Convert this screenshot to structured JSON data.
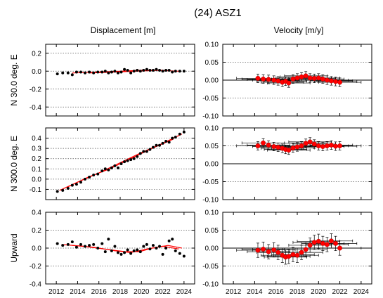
{
  "chart_data": {
    "title": "(24) ASZ1",
    "column_titles": [
      "Displacement [m]",
      "Velocity [m/y]"
    ],
    "x_tick_labels": [
      "2012",
      "2014",
      "2016",
      "2018",
      "2020",
      "2022",
      "2024"
    ],
    "xlim": [
      2011,
      2025
    ],
    "type": "scatter",
    "panels": [
      {
        "row_label": "N  30.0 deg. E",
        "column": "Displacement [m]",
        "type": "scatter",
        "ylim": [
          -0.5,
          0.3
        ],
        "y_tick_labels": [
          "0.2",
          "0.0",
          "-0.2",
          "-0.4"
        ],
        "points": [
          [
            2012.1,
            -0.03
          ],
          [
            2012.6,
            -0.02
          ],
          [
            2013.1,
            -0.02
          ],
          [
            2013.5,
            -0.04
          ],
          [
            2013.9,
            -0.01
          ],
          [
            2014.3,
            -0.01
          ],
          [
            2014.7,
            -0.02
          ],
          [
            2015.1,
            -0.01
          ],
          [
            2015.5,
            -0.02
          ],
          [
            2015.9,
            -0.01
          ],
          [
            2016.3,
            -0.01
          ],
          [
            2016.6,
            0.0
          ],
          [
            2016.9,
            -0.02
          ],
          [
            2017.2,
            -0.01
          ],
          [
            2017.5,
            0.0
          ],
          [
            2017.8,
            -0.02
          ],
          [
            2018.1,
            -0.01
          ],
          [
            2018.4,
            0.02
          ],
          [
            2018.7,
            0.01
          ],
          [
            2019.0,
            -0.02
          ],
          [
            2019.3,
            0.0
          ],
          [
            2019.6,
            0.01
          ],
          [
            2019.9,
            0.0
          ],
          [
            2020.2,
            0.01
          ],
          [
            2020.5,
            0.02
          ],
          [
            2020.8,
            0.01
          ],
          [
            2021.1,
            0.01
          ],
          [
            2021.4,
            0.02
          ],
          [
            2021.7,
            0.01
          ],
          [
            2022.0,
            0.0
          ],
          [
            2022.3,
            0.01
          ],
          [
            2022.6,
            0.01
          ],
          [
            2022.9,
            -0.01
          ],
          [
            2023.2,
            0.0
          ],
          [
            2023.6,
            0.0
          ],
          [
            2024.0,
            0.0
          ]
        ],
        "fit_lines": [
          [
            [
              2013.5,
              -0.02
            ],
            [
              2016,
              -0.01
            ],
            [
              2018,
              0.0
            ],
            [
              2020,
              0.01
            ],
            [
              2022,
              0.01
            ]
          ],
          [
            [
              2015,
              -0.02
            ],
            [
              2017.5,
              -0.01
            ],
            [
              2019.5,
              0.0
            ],
            [
              2021.5,
              0.01
            ],
            [
              2023.5,
              0.0
            ]
          ]
        ]
      },
      {
        "row_label": "N  30.0 deg. E",
        "column": "Velocity [m/y]",
        "type": "scatter",
        "ylim": [
          -0.1,
          0.1
        ],
        "y_tick_labels": [
          "0.10",
          "0.05",
          "0.00",
          "-0.05",
          "-0.10"
        ],
        "points": [
          [
            2014.3,
            0.005
          ],
          [
            2014.8,
            0.003
          ],
          [
            2015.3,
            0.002
          ],
          [
            2015.8,
            0.0
          ],
          [
            2016.2,
            -0.002
          ],
          [
            2016.6,
            -0.006
          ],
          [
            2016.9,
            -0.003
          ],
          [
            2017.2,
            -0.008
          ],
          [
            2017.6,
            0.003
          ],
          [
            2018.0,
            0.006
          ],
          [
            2018.4,
            0.009
          ],
          [
            2018.8,
            0.012
          ],
          [
            2019.2,
            0.006
          ],
          [
            2019.6,
            0.005
          ],
          [
            2020.0,
            0.006
          ],
          [
            2020.4,
            0.003
          ],
          [
            2020.8,
            0.0
          ],
          [
            2021.2,
            -0.002
          ],
          [
            2021.6,
            -0.004
          ],
          [
            2022.0,
            -0.006
          ]
        ],
        "error_y": 0.012,
        "error_x": 2.0
      },
      {
        "row_label": "N 300.0 deg. E",
        "column": "Displacement [m]",
        "type": "scatter",
        "ylim": [
          -0.2,
          0.5
        ],
        "y_tick_labels": [
          "0.4",
          "0.3",
          "0.2",
          "0.1",
          "0.0",
          "-0.1"
        ],
        "points": [
          [
            2012.1,
            -0.12
          ],
          [
            2012.6,
            -0.11
          ],
          [
            2013.1,
            -0.09
          ],
          [
            2013.5,
            -0.06
          ],
          [
            2013.9,
            -0.05
          ],
          [
            2014.3,
            -0.03
          ],
          [
            2014.7,
            0.0
          ],
          [
            2015.1,
            0.02
          ],
          [
            2015.5,
            0.04
          ],
          [
            2015.9,
            0.05
          ],
          [
            2016.3,
            0.08
          ],
          [
            2016.6,
            0.1
          ],
          [
            2016.9,
            0.09
          ],
          [
            2017.2,
            0.11
          ],
          [
            2017.5,
            0.13
          ],
          [
            2017.8,
            0.11
          ],
          [
            2018.1,
            0.15
          ],
          [
            2018.4,
            0.17
          ],
          [
            2018.7,
            0.18
          ],
          [
            2019.0,
            0.19
          ],
          [
            2019.3,
            0.2
          ],
          [
            2019.6,
            0.22
          ],
          [
            2019.9,
            0.25
          ],
          [
            2020.2,
            0.27
          ],
          [
            2020.5,
            0.27
          ],
          [
            2020.8,
            0.29
          ],
          [
            2021.1,
            0.31
          ],
          [
            2021.4,
            0.33
          ],
          [
            2021.7,
            0.33
          ],
          [
            2022.0,
            0.35
          ],
          [
            2022.3,
            0.37
          ],
          [
            2022.6,
            0.36
          ],
          [
            2022.9,
            0.4
          ],
          [
            2023.2,
            0.41
          ],
          [
            2023.6,
            0.44
          ],
          [
            2024.0,
            0.46
          ]
        ],
        "fit_lines": [
          [
            [
              2012.3,
              -0.11
            ],
            [
              2014,
              -0.03
            ],
            [
              2016,
              0.06
            ],
            [
              2018,
              0.16
            ],
            [
              2020,
              0.26
            ],
            [
              2022,
              0.35
            ],
            [
              2023.8,
              0.44
            ]
          ],
          [
            [
              2013,
              -0.08
            ],
            [
              2015,
              0.02
            ],
            [
              2017,
              0.1
            ],
            [
              2019,
              0.2
            ],
            [
              2021,
              0.3
            ],
            [
              2023,
              0.39
            ]
          ]
        ]
      },
      {
        "row_label": "N 300.0 deg. E",
        "column": "Velocity [m/y]",
        "type": "scatter",
        "ylim": [
          -0.1,
          0.1
        ],
        "y_tick_labels": [
          "0.10",
          "0.05",
          "0.00",
          "-0.05",
          "-0.10"
        ],
        "points": [
          [
            2014.3,
            0.05
          ],
          [
            2014.8,
            0.058
          ],
          [
            2015.3,
            0.052
          ],
          [
            2015.8,
            0.048
          ],
          [
            2016.2,
            0.046
          ],
          [
            2016.6,
            0.043
          ],
          [
            2016.9,
            0.04
          ],
          [
            2017.2,
            0.038
          ],
          [
            2017.6,
            0.044
          ],
          [
            2018.0,
            0.047
          ],
          [
            2018.4,
            0.05
          ],
          [
            2018.8,
            0.057
          ],
          [
            2019.2,
            0.061
          ],
          [
            2019.6,
            0.055
          ],
          [
            2020.0,
            0.05
          ],
          [
            2020.4,
            0.048
          ],
          [
            2020.8,
            0.05
          ],
          [
            2021.2,
            0.052
          ],
          [
            2021.6,
            0.049
          ],
          [
            2022.0,
            0.05
          ]
        ],
        "error_y": 0.012,
        "error_x": 2.0
      },
      {
        "row_label": "Upward",
        "column": "Displacement [m]",
        "type": "scatter",
        "ylim": [
          -0.4,
          0.4
        ],
        "y_tick_labels": [
          "0.4",
          "0.2",
          "0.0",
          "-0.2",
          "-0.4"
        ],
        "points": [
          [
            2012.1,
            0.05
          ],
          [
            2012.6,
            0.03
          ],
          [
            2013.1,
            0.04
          ],
          [
            2013.5,
            0.07
          ],
          [
            2013.9,
            0.01
          ],
          [
            2014.3,
            0.04
          ],
          [
            2014.7,
            0.02
          ],
          [
            2015.1,
            0.03
          ],
          [
            2015.5,
            0.04
          ],
          [
            2015.9,
            0.0
          ],
          [
            2016.3,
            0.05
          ],
          [
            2016.6,
            -0.04
          ],
          [
            2016.9,
            0.1
          ],
          [
            2017.2,
            -0.03
          ],
          [
            2017.5,
            0.02
          ],
          [
            2017.8,
            -0.05
          ],
          [
            2018.1,
            -0.07
          ],
          [
            2018.4,
            -0.05
          ],
          [
            2018.7,
            -0.02
          ],
          [
            2019.0,
            -0.06
          ],
          [
            2019.3,
            -0.03
          ],
          [
            2019.6,
            -0.02
          ],
          [
            2019.9,
            -0.04
          ],
          [
            2020.2,
            0.02
          ],
          [
            2020.5,
            0.04
          ],
          [
            2020.8,
            -0.01
          ],
          [
            2021.1,
            0.03
          ],
          [
            2021.4,
            0.0
          ],
          [
            2021.7,
            0.02
          ],
          [
            2022.0,
            -0.07
          ],
          [
            2022.3,
            0.0
          ],
          [
            2022.6,
            0.08
          ],
          [
            2022.9,
            0.1
          ],
          [
            2023.2,
            -0.03
          ],
          [
            2023.6,
            -0.06
          ],
          [
            2024.0,
            -0.09
          ]
        ],
        "fit_lines": [
          [
            [
              2012.5,
              0.04
            ],
            [
              2014.5,
              0.02
            ],
            [
              2016.5,
              -0.01
            ],
            [
              2018.5,
              -0.04
            ],
            [
              2019.8,
              -0.04
            ],
            [
              2021,
              0.0
            ],
            [
              2022.5,
              0.03
            ],
            [
              2023.8,
              0.0
            ]
          ],
          [
            [
              2013.5,
              0.03
            ],
            [
              2015.5,
              0.01
            ],
            [
              2017.5,
              -0.03
            ],
            [
              2019,
              -0.05
            ],
            [
              2020.5,
              -0.01
            ],
            [
              2022,
              0.02
            ],
            [
              2023.5,
              -0.01
            ]
          ]
        ]
      },
      {
        "row_label": "Upward",
        "column": "Velocity [m/y]",
        "type": "scatter",
        "ylim": [
          -0.1,
          0.1
        ],
        "y_tick_labels": [
          "0.10",
          "0.05",
          "0.00",
          "-0.05",
          "-0.10"
        ],
        "points": [
          [
            2014.3,
            -0.006
          ],
          [
            2014.8,
            -0.003
          ],
          [
            2015.3,
            -0.01
          ],
          [
            2015.8,
            -0.005
          ],
          [
            2016.2,
            -0.012
          ],
          [
            2016.6,
            -0.02
          ],
          [
            2016.9,
            -0.025
          ],
          [
            2017.2,
            -0.023
          ],
          [
            2017.6,
            -0.018
          ],
          [
            2018.0,
            -0.02
          ],
          [
            2018.4,
            -0.012
          ],
          [
            2018.8,
            -0.004
          ],
          [
            2019.2,
            0.008
          ],
          [
            2019.6,
            0.016
          ],
          [
            2020.0,
            0.019
          ],
          [
            2020.4,
            0.013
          ],
          [
            2020.8,
            0.01
          ],
          [
            2021.2,
            0.02
          ],
          [
            2021.6,
            0.013
          ],
          [
            2022.0,
            0.0
          ]
        ],
        "error_y": 0.02,
        "error_x": 2.0
      }
    ]
  },
  "colors": {
    "marker_black": "#000000",
    "marker_red": "#ff0000",
    "fit_red": "#ff0000",
    "grid": "#555555"
  }
}
